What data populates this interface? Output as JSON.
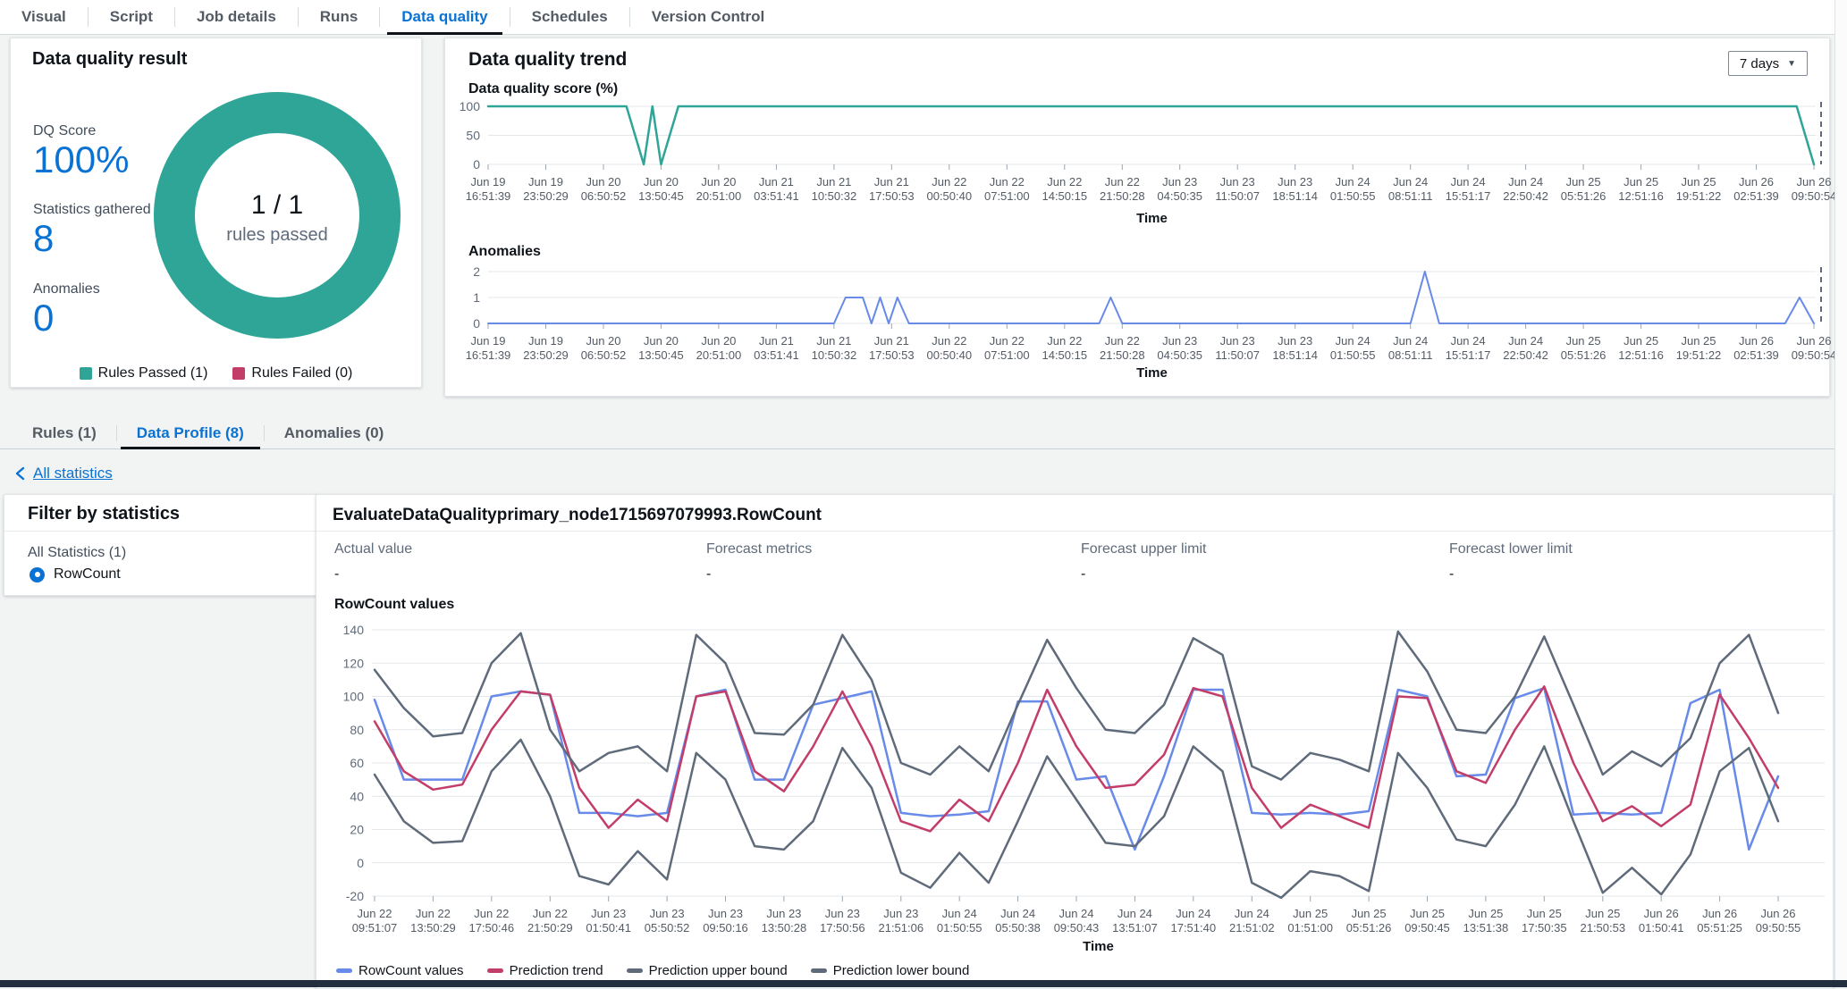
{
  "colors": {
    "accent_blue": "#0972d3",
    "teal": "#2ea597",
    "crimson": "#c33d69",
    "chart_blue": "#688ae8",
    "bound_gray": "#5f6b7a",
    "footer_dark": "#232f3e"
  },
  "tabs_top": {
    "items": [
      {
        "label": "Visual",
        "selected": false
      },
      {
        "label": "Script",
        "selected": false
      },
      {
        "label": "Job details",
        "selected": false
      },
      {
        "label": "Runs",
        "selected": false
      },
      {
        "label": "Data quality",
        "selected": true
      },
      {
        "label": "Schedules",
        "selected": false
      },
      {
        "label": "Version Control",
        "selected": false
      }
    ]
  },
  "result_card": {
    "title": "Data quality result",
    "stats": [
      {
        "label": "DQ Score",
        "value": "100%"
      },
      {
        "label": "Statistics gathered",
        "value": "8"
      },
      {
        "label": "Anomalies",
        "value": "0"
      }
    ],
    "donut": {
      "center_value": "1 / 1",
      "center_label": "rules passed",
      "color": "#2ea597",
      "passed": 1,
      "failed": 0
    },
    "legend": [
      {
        "label": "Rules Passed (1)",
        "color": "#2ea597"
      },
      {
        "label": "Rules Failed (0)",
        "color": "#c33d69"
      }
    ]
  },
  "trend_card": {
    "title": "Data quality trend",
    "range_selector": {
      "label": "7 days",
      "icon": "caret-down-icon"
    },
    "score_chart": {
      "section_label": "Data quality score (%)",
      "type": "line",
      "ylim": [
        0,
        100
      ],
      "yticks": [
        100,
        50,
        0
      ],
      "xlabel": "Time",
      "end_dash": true,
      "x_categories": [
        [
          "Jun 19",
          "16:51:39"
        ],
        [
          "Jun 19",
          "23:50:29"
        ],
        [
          "Jun 20",
          "06:50:52"
        ],
        [
          "Jun 20",
          "13:50:45"
        ],
        [
          "Jun 20",
          "20:51:00"
        ],
        [
          "Jun 21",
          "03:51:41"
        ],
        [
          "Jun 21",
          "10:50:32"
        ],
        [
          "Jun 21",
          "17:50:53"
        ],
        [
          "Jun 22",
          "00:50:40"
        ],
        [
          "Jun 22",
          "07:51:00"
        ],
        [
          "Jun 22",
          "14:50:15"
        ],
        [
          "Jun 22",
          "21:50:28"
        ],
        [
          "Jun 23",
          "04:50:35"
        ],
        [
          "Jun 23",
          "11:50:07"
        ],
        [
          "Jun 23",
          "18:51:14"
        ],
        [
          "Jun 24",
          "01:50:55"
        ],
        [
          "Jun 24",
          "08:51:11"
        ],
        [
          "Jun 24",
          "15:51:17"
        ],
        [
          "Jun 24",
          "22:50:42"
        ],
        [
          "Jun 25",
          "05:51:26"
        ],
        [
          "Jun 25",
          "12:51:16"
        ],
        [
          "Jun 25",
          "19:51:22"
        ],
        [
          "Jun 26",
          "02:51:39"
        ],
        [
          "Jun 26",
          "09:50:54"
        ]
      ],
      "series": [
        {
          "name": "DQ score",
          "color": "#2ea597",
          "width": 2.5,
          "points": [
            [
              0,
              100
            ],
            [
              2.4,
              100
            ],
            [
              2.7,
              0
            ],
            [
              2.85,
              100
            ],
            [
              3.0,
              0
            ],
            [
              3.3,
              100
            ],
            [
              22.7,
              100
            ],
            [
              23,
              0
            ]
          ]
        }
      ]
    },
    "anomalies_chart": {
      "section_label": "Anomalies",
      "type": "line",
      "ylim": [
        0,
        2
      ],
      "yticks": [
        2,
        1,
        0
      ],
      "xlabel": "Time",
      "end_dash": true,
      "x_categories": [
        [
          "Jun 19",
          "16:51:39"
        ],
        [
          "Jun 19",
          "23:50:29"
        ],
        [
          "Jun 20",
          "06:50:52"
        ],
        [
          "Jun 20",
          "13:50:45"
        ],
        [
          "Jun 20",
          "20:51:00"
        ],
        [
          "Jun 21",
          "03:51:41"
        ],
        [
          "Jun 21",
          "10:50:32"
        ],
        [
          "Jun 21",
          "17:50:53"
        ],
        [
          "Jun 22",
          "00:50:40"
        ],
        [
          "Jun 22",
          "07:51:00"
        ],
        [
          "Jun 22",
          "14:50:15"
        ],
        [
          "Jun 22",
          "21:50:28"
        ],
        [
          "Jun 23",
          "04:50:35"
        ],
        [
          "Jun 23",
          "11:50:07"
        ],
        [
          "Jun 23",
          "18:51:14"
        ],
        [
          "Jun 24",
          "01:50:55"
        ],
        [
          "Jun 24",
          "08:51:11"
        ],
        [
          "Jun 24",
          "15:51:17"
        ],
        [
          "Jun 24",
          "22:50:42"
        ],
        [
          "Jun 25",
          "05:51:26"
        ],
        [
          "Jun 25",
          "12:51:16"
        ],
        [
          "Jun 25",
          "19:51:22"
        ],
        [
          "Jun 26",
          "02:51:39"
        ],
        [
          "Jun 26",
          "09:50:54"
        ]
      ],
      "series": [
        {
          "name": "Anomalies",
          "color": "#688ae8",
          "width": 2,
          "points": [
            [
              0,
              0
            ],
            [
              6.0,
              0
            ],
            [
              6.2,
              1
            ],
            [
              6.5,
              1
            ],
            [
              6.65,
              0
            ],
            [
              6.8,
              1
            ],
            [
              6.95,
              0
            ],
            [
              7.1,
              1
            ],
            [
              7.3,
              0
            ],
            [
              10.6,
              0
            ],
            [
              10.8,
              1
            ],
            [
              11.0,
              0
            ],
            [
              16.0,
              0
            ],
            [
              16.25,
              2
            ],
            [
              16.5,
              0
            ],
            [
              22.5,
              0
            ],
            [
              22.75,
              1
            ],
            [
              23,
              0
            ]
          ]
        }
      ]
    }
  },
  "tabs_profile": {
    "items": [
      {
        "label": "Rules (1)",
        "selected": false
      },
      {
        "label": "Data Profile (8)",
        "selected": true
      },
      {
        "label": "Anomalies (0)",
        "selected": false
      }
    ]
  },
  "back_link": {
    "label": "All statistics"
  },
  "filter_card": {
    "title": "Filter by statistics",
    "group_label": "All Statistics (1)",
    "options": [
      {
        "label": "RowCount",
        "selected": true
      }
    ]
  },
  "profile_card": {
    "title": "EvaluateDataQualityprimary_node1715697079993.RowCount",
    "metrics": [
      {
        "label": "Actual value",
        "value": "-"
      },
      {
        "label": "Forecast metrics",
        "value": "-"
      },
      {
        "label": "Forecast upper limit",
        "value": "-"
      },
      {
        "label": "Forecast lower limit",
        "value": "-"
      }
    ],
    "chart_label": "RowCount values",
    "chart": {
      "type": "line",
      "ylim": [
        -20,
        140
      ],
      "yticks": [
        140,
        120,
        100,
        80,
        60,
        40,
        20,
        0,
        -20
      ],
      "xlabel": "Time",
      "step": 0.5,
      "x_categories": [
        [
          "Jun 22",
          "09:51:07"
        ],
        [
          "Jun 22",
          "13:50:29"
        ],
        [
          "Jun 22",
          "17:50:46"
        ],
        [
          "Jun 22",
          "21:50:29"
        ],
        [
          "Jun 23",
          "01:50:41"
        ],
        [
          "Jun 23",
          "05:50:52"
        ],
        [
          "Jun 23",
          "09:50:16"
        ],
        [
          "Jun 23",
          "13:50:28"
        ],
        [
          "Jun 23",
          "17:50:56"
        ],
        [
          "Jun 23",
          "21:51:06"
        ],
        [
          "Jun 24",
          "01:50:55"
        ],
        [
          "Jun 24",
          "05:50:38"
        ],
        [
          "Jun 24",
          "09:50:43"
        ],
        [
          "Jun 24",
          "13:51:07"
        ],
        [
          "Jun 24",
          "17:51:40"
        ],
        [
          "Jun 24",
          "21:51:02"
        ],
        [
          "Jun 25",
          "01:51:00"
        ],
        [
          "Jun 25",
          "05:51:26"
        ],
        [
          "Jun 25",
          "09:50:45"
        ],
        [
          "Jun 25",
          "13:51:38"
        ],
        [
          "Jun 25",
          "17:50:35"
        ],
        [
          "Jun 25",
          "21:50:53"
        ],
        [
          "Jun 26",
          "01:50:41"
        ],
        [
          "Jun 26",
          "05:51:25"
        ],
        [
          "Jun 26",
          "09:50:55"
        ]
      ],
      "series": [
        {
          "name": "RowCount values",
          "color": "#688ae8",
          "width": 2.5,
          "values": [
            98,
            50,
            50,
            50,
            100,
            103,
            101,
            30,
            30,
            28,
            30,
            100,
            104,
            50,
            50,
            95,
            99,
            103,
            30,
            28,
            29,
            31,
            97,
            97,
            50,
            52,
            8,
            52,
            104,
            104,
            30,
            29,
            30,
            29,
            31,
            104,
            100,
            52,
            53,
            99,
            105,
            29,
            30,
            29,
            30,
            96,
            104,
            8,
            52
          ]
        },
        {
          "name": "Prediction trend",
          "color": "#c33d69",
          "width": 2.5,
          "values": [
            85,
            55,
            44,
            47,
            80,
            103,
            101,
            45,
            21,
            38,
            25,
            100,
            103,
            55,
            43,
            70,
            103,
            70,
            25,
            19,
            38,
            25,
            60,
            104,
            70,
            45,
            47,
            65,
            105,
            100,
            45,
            21,
            35,
            28,
            21,
            100,
            99,
            55,
            48,
            80,
            106,
            60,
            25,
            34,
            22,
            35,
            101,
            75,
            45
          ]
        },
        {
          "name": "Prediction upper bound",
          "color": "#5f6b7a",
          "width": 2.5,
          "values": [
            116,
            93,
            76,
            78,
            120,
            138,
            80,
            55,
            66,
            70,
            55,
            137,
            120,
            78,
            77,
            95,
            137,
            110,
            60,
            53,
            70,
            55,
            95,
            134,
            105,
            80,
            78,
            95,
            135,
            125,
            58,
            50,
            66,
            62,
            55,
            139,
            115,
            80,
            78,
            100,
            136,
            95,
            53,
            67,
            58,
            75,
            120,
            137,
            90
          ]
        },
        {
          "name": "Prediction lower bound",
          "color": "#5f6b7a",
          "width": 2.5,
          "values": [
            53,
            25,
            12,
            13,
            55,
            74,
            40,
            -8,
            -13,
            7,
            -10,
            66,
            50,
            10,
            8,
            25,
            69,
            45,
            -6,
            -15,
            6,
            -12,
            25,
            64,
            38,
            12,
            10,
            28,
            70,
            55,
            -12,
            -21,
            -5,
            -8,
            -17,
            66,
            45,
            14,
            10,
            35,
            70,
            25,
            -18,
            -3,
            -19,
            5,
            55,
            69,
            25
          ]
        }
      ]
    },
    "legend": [
      {
        "label": "RowCount values",
        "color": "#688ae8"
      },
      {
        "label": "Prediction trend",
        "color": "#c33d69"
      },
      {
        "label": "Prediction upper bound",
        "color": "#5f6b7a"
      },
      {
        "label": "Prediction lower bound",
        "color": "#5f6b7a"
      }
    ]
  }
}
